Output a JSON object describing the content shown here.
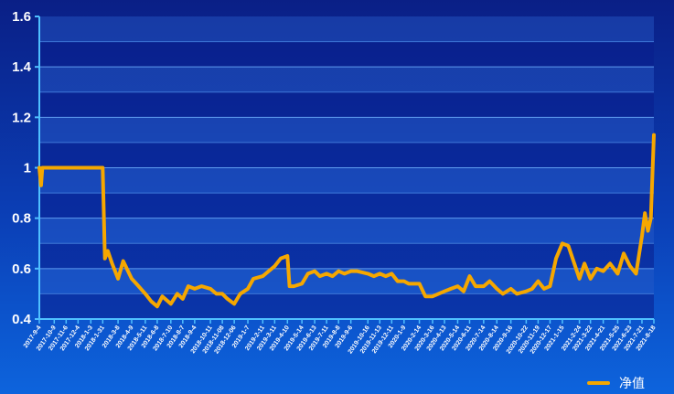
{
  "chart_data": {
    "type": "line",
    "title": "",
    "xlabel": "",
    "ylabel": "",
    "ylim": [
      0.4,
      1.6
    ],
    "yticks": [
      0.4,
      0.6,
      0.8,
      1,
      1.2,
      1.4,
      1.6
    ],
    "ytick_labels": [
      "0.4",
      "0.6",
      "0.8",
      "1",
      "1.2",
      "1.4",
      "1.6"
    ],
    "grid": true,
    "legend_position": "bottom-right",
    "series_color": "#f5a700",
    "x_tick_labels": [
      "2017-9-4",
      "2017-10-9",
      "2017-11-6",
      "2017-12-4",
      "2018-1-3",
      "2018-1-31",
      "2018-3-8",
      "2018-4-9",
      "2018-5-11",
      "2018-6-8",
      "2018-7-10",
      "2018-8-7",
      "2018-9-4",
      "2018-10-11",
      "2018-11-08",
      "2018-12-06",
      "2019-1-7",
      "2019-2-11",
      "2019-3-11",
      "2019-4-10",
      "2019-5-14",
      "2019-6-13",
      "2019-7-11",
      "2019-8-8",
      "2019-9-6",
      "2019-10-16",
      "2019-11-13",
      "2019-12-11",
      "2020-1-9",
      "2020-2-14",
      "2020-3-16",
      "2020-4-13",
      "2020-5-14",
      "2020-6-11",
      "2020-7-14",
      "2020-8-14",
      "2020-9-16",
      "2020-10-22",
      "2020-11-19",
      "2020-12-17",
      "2021-1-15",
      "2021-2-24",
      "2021-3-22",
      "2021-4-21",
      "2021-5-25",
      "2021-6-23",
      "2021-7-21",
      "2021-8-18"
    ],
    "series": [
      {
        "name": "净值",
        "x": [
          "2017-9-4",
          "2017-9-8",
          "2017-9-11",
          "2017-9-18",
          "2017-10-9",
          "2017-11-6",
          "2017-12-4",
          "2018-1-3",
          "2018-1-31",
          "2018-2-5",
          "2018-2-12",
          "2018-2-22",
          "2018-3-8",
          "2018-3-20",
          "2018-4-9",
          "2018-4-20",
          "2018-5-11",
          "2018-5-25",
          "2018-6-8",
          "2018-6-20",
          "2018-7-10",
          "2018-7-25",
          "2018-8-7",
          "2018-8-20",
          "2018-9-4",
          "2018-9-20",
          "2018-10-11",
          "2018-10-25",
          "2018-11-08",
          "2018-11-20",
          "2018-12-06",
          "2018-12-20",
          "2019-1-7",
          "2019-1-20",
          "2019-2-11",
          "2019-2-25",
          "2019-3-11",
          "2019-3-25",
          "2019-4-10",
          "2019-4-15",
          "2019-4-25",
          "2019-5-14",
          "2019-5-28",
          "2019-6-13",
          "2019-6-25",
          "2019-7-11",
          "2019-7-25",
          "2019-8-8",
          "2019-8-22",
          "2019-9-6",
          "2019-9-20",
          "2019-10-16",
          "2019-10-30",
          "2019-11-13",
          "2019-11-27",
          "2019-12-11",
          "2019-12-25",
          "2020-1-9",
          "2020-1-20",
          "2020-2-14",
          "2020-2-28",
          "2020-3-16",
          "2020-3-30",
          "2020-4-13",
          "2020-4-28",
          "2020-5-14",
          "2020-5-28",
          "2020-6-11",
          "2020-6-25",
          "2020-7-14",
          "2020-7-28",
          "2020-8-14",
          "2020-8-28",
          "2020-9-16",
          "2020-9-30",
          "2020-10-22",
          "2020-11-5",
          "2020-11-19",
          "2020-12-3",
          "2020-12-17",
          "2020-12-31",
          "2021-1-15",
          "2021-1-29",
          "2021-2-24",
          "2021-3-8",
          "2021-3-22",
          "2021-4-6",
          "2021-4-21",
          "2021-5-7",
          "2021-5-25",
          "2021-6-8",
          "2021-6-23",
          "2021-7-7",
          "2021-7-21",
          "2021-7-28",
          "2021-8-4",
          "2021-8-11",
          "2021-8-18"
        ],
        "values": [
          1.0,
          0.93,
          1.0,
          1.0,
          1.0,
          1.0,
          1.0,
          1.0,
          1.0,
          0.64,
          0.67,
          0.62,
          0.56,
          0.63,
          0.56,
          0.54,
          0.5,
          0.47,
          0.45,
          0.49,
          0.46,
          0.5,
          0.48,
          0.53,
          0.52,
          0.53,
          0.52,
          0.5,
          0.5,
          0.48,
          0.46,
          0.5,
          0.52,
          0.56,
          0.57,
          0.59,
          0.61,
          0.64,
          0.65,
          0.53,
          0.53,
          0.54,
          0.58,
          0.59,
          0.57,
          0.58,
          0.57,
          0.59,
          0.58,
          0.59,
          0.59,
          0.58,
          0.57,
          0.58,
          0.57,
          0.58,
          0.55,
          0.55,
          0.54,
          0.54,
          0.49,
          0.49,
          0.5,
          0.51,
          0.52,
          0.53,
          0.51,
          0.57,
          0.53,
          0.53,
          0.55,
          0.52,
          0.5,
          0.52,
          0.5,
          0.51,
          0.52,
          0.55,
          0.52,
          0.53,
          0.64,
          0.7,
          0.69,
          0.56,
          0.62,
          0.56,
          0.6,
          0.59,
          0.62,
          0.58,
          0.66,
          0.61,
          0.58,
          0.73,
          0.82,
          0.75,
          0.8,
          1.13
        ]
      }
    ]
  }
}
